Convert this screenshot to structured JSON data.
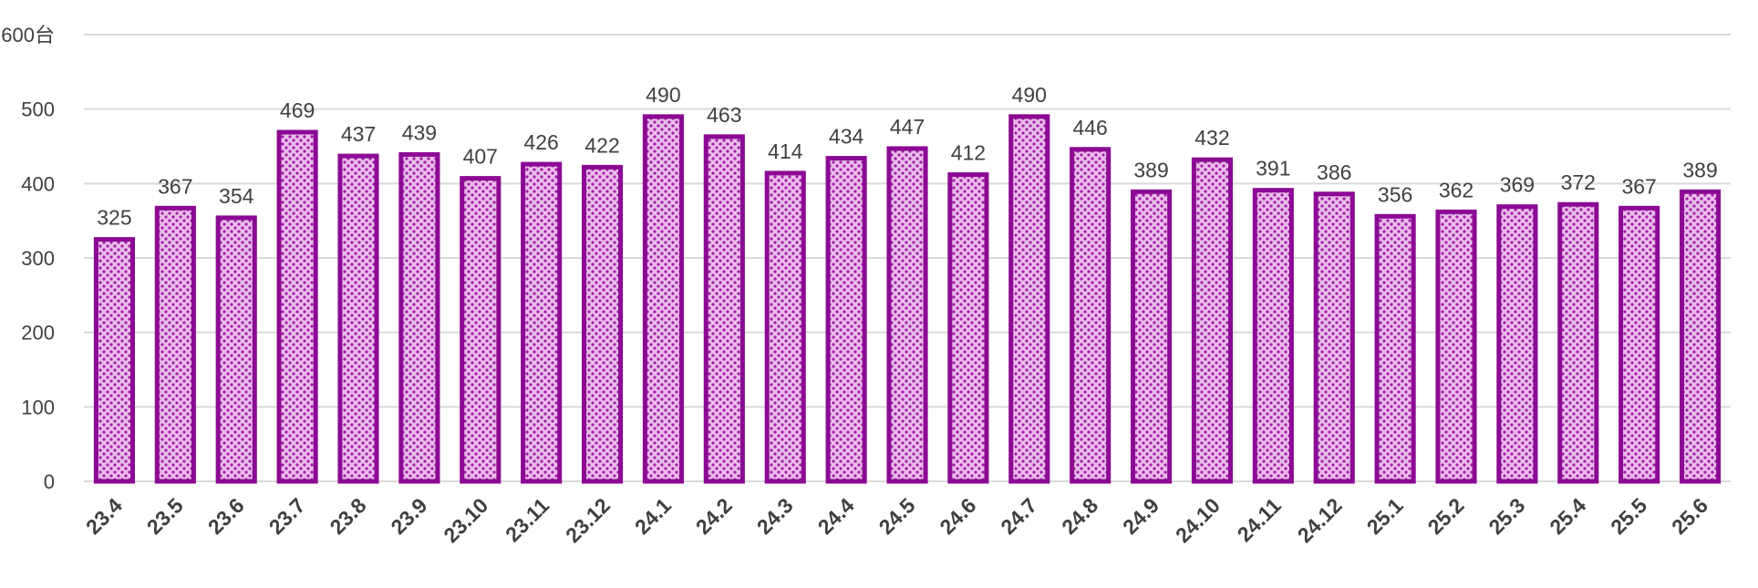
{
  "chart_data": {
    "type": "bar",
    "categories": [
      "23.4",
      "23.5",
      "23.6",
      "23.7",
      "23.8",
      "23.9",
      "23.10",
      "23.11",
      "23.12",
      "24.1",
      "24.2",
      "24.3",
      "24.4",
      "24.5",
      "24.6",
      "24.7",
      "24.8",
      "24.9",
      "24.10",
      "24.11",
      "24.12",
      "25.1",
      "25.2",
      "25.3",
      "25.4",
      "25.5",
      "25.6"
    ],
    "values": [
      325,
      367,
      354,
      469,
      437,
      439,
      407,
      426,
      422,
      490,
      463,
      414,
      434,
      447,
      412,
      490,
      446,
      389,
      432,
      391,
      386,
      356,
      362,
      369,
      372,
      367,
      389
    ],
    "ylim": [
      0,
      600
    ],
    "yticks": [
      "0",
      "100",
      "200",
      "300",
      "400",
      "500",
      "600台"
    ],
    "grid": true,
    "legend": "none",
    "colors": {
      "bar_fill": "#e6b3e6",
      "bar_pattern": "#9b1aa3",
      "bar_border": "#8b0a93"
    }
  }
}
